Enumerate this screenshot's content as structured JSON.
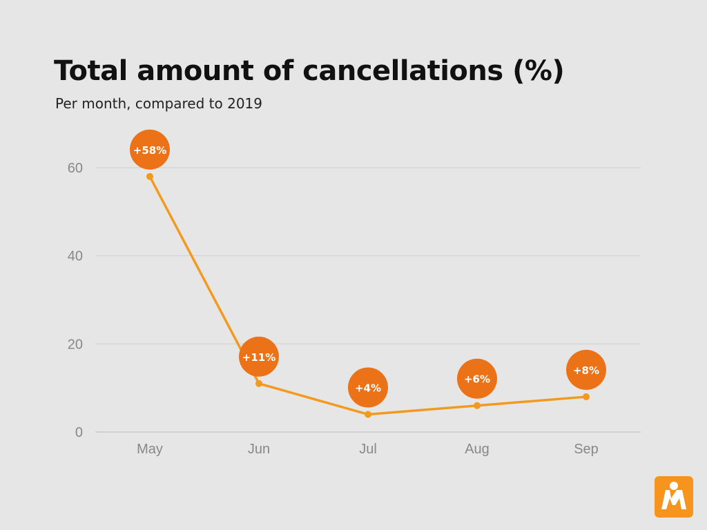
{
  "title": "Total amount of cancellations (%)",
  "subtitle": "Per month, compared to 2019",
  "colors": {
    "line": "#f39a1e",
    "bubble": "#ec7217",
    "bubble_text": "#ffffff",
    "grid": "#cfcfcf",
    "axis_text": "#888888",
    "background": "#e6e6e6",
    "logo": "#f7941d"
  },
  "logo_icon": "person-h-logo-icon",
  "chart_data": {
    "type": "line",
    "categories": [
      "May",
      "Jun",
      "Jul",
      "Aug",
      "Sep"
    ],
    "values": [
      58,
      11,
      4,
      6,
      8
    ],
    "data_labels": [
      "+58%",
      "+11%",
      "+4%",
      "+6%",
      "+8%"
    ],
    "yticks": [
      0,
      20,
      40,
      60
    ],
    "ylim": [
      0,
      60
    ],
    "grid": true,
    "legend": false
  }
}
